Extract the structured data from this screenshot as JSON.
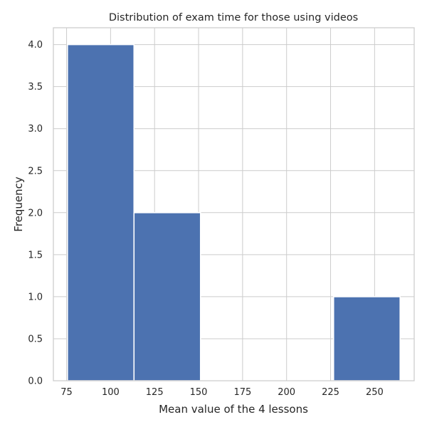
{
  "chart_data": {
    "type": "bar",
    "subtype": "histogram",
    "title": "Distribution of exam time for those using videos",
    "xlabel": "Mean value of the 4 lessons",
    "ylabel": "Frequency",
    "bins": [
      {
        "start": 75.5,
        "end": 113.3,
        "count": 4
      },
      {
        "start": 113.3,
        "end": 151.1,
        "count": 2
      },
      {
        "start": 151.1,
        "end": 188.9,
        "count": 0
      },
      {
        "start": 188.9,
        "end": 226.7,
        "count": 0
      },
      {
        "start": 226.7,
        "end": 264.5,
        "count": 1
      }
    ],
    "xlim": [
      67.5,
      272.5
    ],
    "ylim": [
      0,
      4.2
    ],
    "xticks": [
      75,
      100,
      125,
      150,
      175,
      200,
      225,
      250
    ],
    "xtick_labels": [
      "75",
      "100",
      "125",
      "150",
      "175",
      "200",
      "225",
      "250"
    ],
    "yticks": [
      0,
      0.5,
      1,
      1.5,
      2,
      2.5,
      3,
      3.5,
      4
    ],
    "ytick_labels": [
      "0.0",
      "0.5",
      "1.0",
      "1.5",
      "2.0",
      "2.5",
      "3.0",
      "3.5",
      "4.0"
    ],
    "grid": true,
    "legend": "none",
    "colors": {
      "bar": "#4c72b0",
      "grid": "#cccccc",
      "text": "#262626",
      "background": "#ffffff"
    }
  }
}
